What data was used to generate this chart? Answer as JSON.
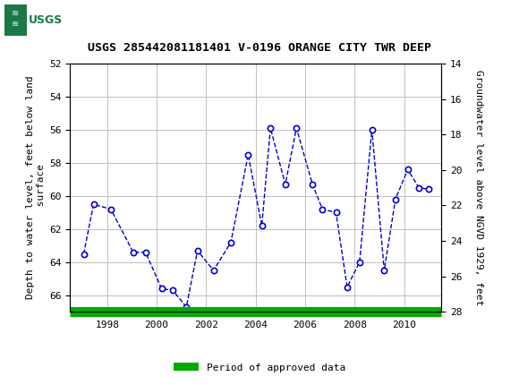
{
  "title": "USGS 285442081181401 V-0196 ORANGE CITY TWR DEEP",
  "ylabel_left": "Depth to water level, feet below land\n surface",
  "ylabel_right": "Groundwater level above NGVD 1929, feet",
  "header_color": "#1a7a45",
  "years": [
    1997.05,
    1997.45,
    1998.15,
    1999.05,
    1999.55,
    2000.2,
    2000.65,
    2001.2,
    2001.65,
    2002.3,
    2003.0,
    2003.7,
    2004.25,
    2004.6,
    2005.2,
    2005.65,
    2006.3,
    2006.7,
    2007.25,
    2007.7,
    2008.2,
    2008.7,
    2009.2,
    2009.65,
    2010.15,
    2010.6,
    2011.0
  ],
  "depths": [
    63.5,
    60.5,
    60.8,
    63.4,
    63.4,
    65.6,
    65.7,
    66.7,
    63.3,
    64.5,
    62.8,
    57.5,
    61.8,
    55.9,
    59.3,
    55.9,
    59.3,
    60.8,
    61.0,
    65.5,
    64.0,
    56.0,
    64.5,
    60.2,
    58.4,
    59.5,
    59.6
  ],
  "ylim_left": [
    52,
    67
  ],
  "ylim_right": [
    14,
    28
  ],
  "xlim": [
    1996.5,
    2011.5
  ],
  "xticks": [
    1998,
    2000,
    2002,
    2004,
    2006,
    2008,
    2010
  ],
  "yticks_left": [
    52,
    54,
    56,
    58,
    60,
    62,
    64,
    66
  ],
  "yticks_right": [
    14,
    16,
    18,
    20,
    22,
    24,
    26,
    28
  ],
  "line_color": "#0000cc",
  "grid_color": "#c0c0c0",
  "approved_color": "#00aa00",
  "bg_color": "#ffffff",
  "legend_text": "Period of approved data",
  "font_family": "monospace"
}
